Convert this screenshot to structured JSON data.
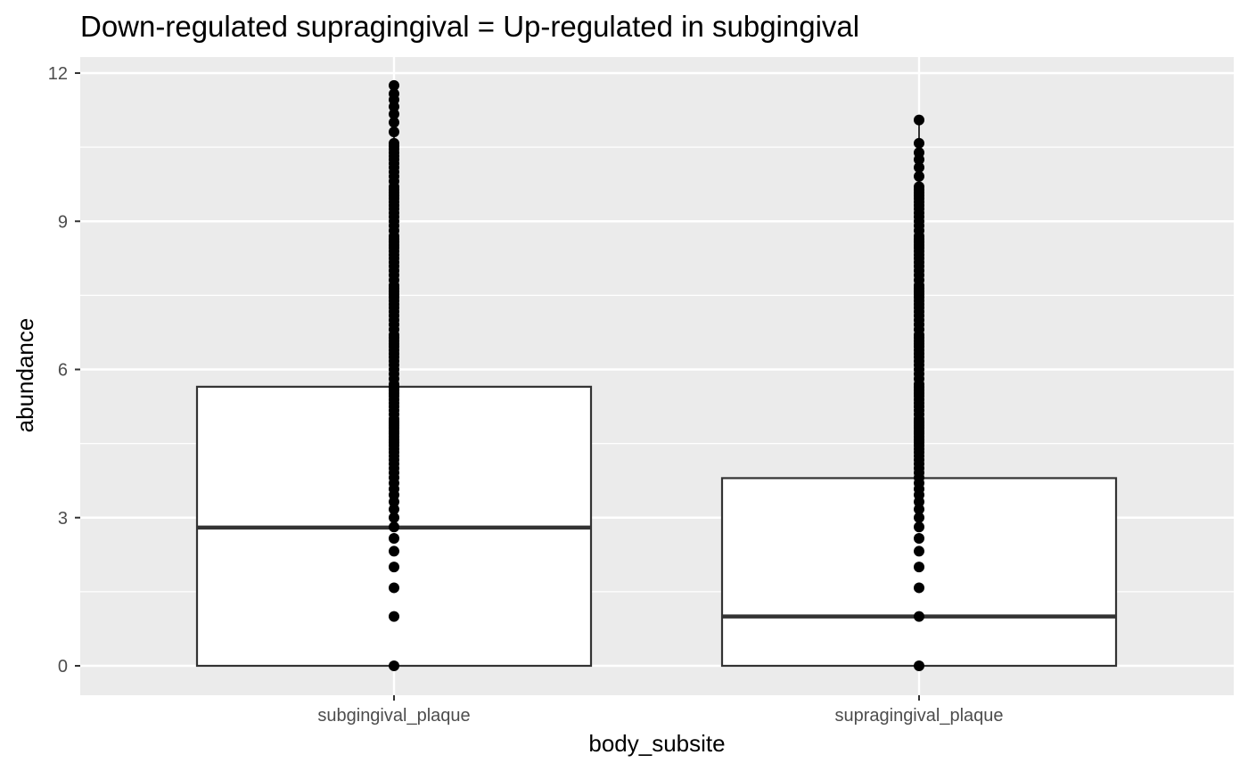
{
  "chart_data": {
    "type": "boxplot",
    "title": "Down-regulated supragingival = Up-regulated in subgingival",
    "xlabel": "body_subsite",
    "ylabel": "abundance",
    "categories": [
      "subgingival_plaque",
      "supragingival_plaque"
    ],
    "ylim": [
      -0.5,
      12.3
    ],
    "yticks": [
      0,
      3,
      6,
      9,
      12
    ],
    "ytick_labels": [
      "0",
      "3",
      "6",
      "9",
      "12"
    ],
    "grid": true,
    "legend": "none",
    "colors": {
      "panel_background": "#ebebeb",
      "grid_major": "#ffffff",
      "box_fill": "#ffffff",
      "box_outline": "#333333",
      "points": "#000000",
      "tick_text": "#4d4d4d"
    },
    "boxes": [
      {
        "category": "subgingival_plaque",
        "q1": 0,
        "median": 2.8,
        "q3": 5.65,
        "whisker_low": 0,
        "whisker_high": 11.75,
        "points": [
          0,
          1.0,
          1.58,
          2.0,
          2.32,
          2.58,
          2.81,
          3.0,
          3.17,
          3.32,
          3.46,
          3.58,
          3.7,
          3.81,
          3.91,
          4.0,
          4.09,
          4.17,
          4.25,
          4.32,
          4.39,
          4.46,
          4.52,
          4.58,
          4.64,
          4.7,
          4.75,
          4.81,
          4.86,
          4.91,
          4.95,
          5.0,
          5.09,
          5.17,
          5.25,
          5.32,
          5.39,
          5.46,
          5.52,
          5.58,
          5.64,
          5.7,
          5.81,
          5.91,
          6.0,
          6.09,
          6.17,
          6.25,
          6.32,
          6.39,
          6.46,
          6.52,
          6.58,
          6.64,
          6.7,
          6.81,
          6.91,
          7.0,
          7.09,
          7.17,
          7.25,
          7.32,
          7.39,
          7.46,
          7.52,
          7.58,
          7.64,
          7.7,
          7.81,
          7.91,
          8.0,
          8.09,
          8.17,
          8.25,
          8.32,
          8.39,
          8.46,
          8.52,
          8.58,
          8.64,
          8.7,
          8.81,
          8.91,
          9.0,
          9.09,
          9.17,
          9.25,
          9.32,
          9.39,
          9.46,
          9.52,
          9.58,
          9.64,
          9.7,
          9.81,
          9.91,
          10.0,
          10.09,
          10.17,
          10.25,
          10.32,
          10.39,
          10.46,
          10.52,
          10.58,
          10.81,
          11.0,
          11.17,
          11.32,
          11.46,
          11.58,
          11.75
        ]
      },
      {
        "category": "supragingival_plaque",
        "q1": 0,
        "median": 1.0,
        "q3": 3.8,
        "whisker_low": 0,
        "whisker_high": 11.05,
        "points": [
          0,
          1.0,
          1.58,
          2.0,
          2.32,
          2.58,
          2.81,
          3.0,
          3.17,
          3.32,
          3.46,
          3.58,
          3.7,
          3.81,
          3.91,
          4.0,
          4.09,
          4.17,
          4.25,
          4.32,
          4.39,
          4.46,
          4.52,
          4.58,
          4.64,
          4.7,
          4.75,
          4.81,
          4.86,
          4.91,
          4.95,
          5.0,
          5.09,
          5.17,
          5.25,
          5.32,
          5.39,
          5.46,
          5.52,
          5.58,
          5.64,
          5.7,
          5.81,
          5.91,
          6.0,
          6.09,
          6.17,
          6.25,
          6.32,
          6.39,
          6.46,
          6.52,
          6.58,
          6.64,
          6.7,
          6.81,
          6.91,
          7.0,
          7.09,
          7.17,
          7.25,
          7.32,
          7.39,
          7.46,
          7.52,
          7.58,
          7.64,
          7.7,
          7.81,
          7.91,
          8.0,
          8.09,
          8.17,
          8.25,
          8.32,
          8.39,
          8.46,
          8.52,
          8.58,
          8.64,
          8.7,
          8.81,
          8.91,
          9.0,
          9.09,
          9.17,
          9.25,
          9.32,
          9.39,
          9.46,
          9.52,
          9.58,
          9.64,
          9.7,
          9.91,
          10.09,
          10.25,
          10.39,
          10.58,
          11.05
        ]
      }
    ]
  }
}
